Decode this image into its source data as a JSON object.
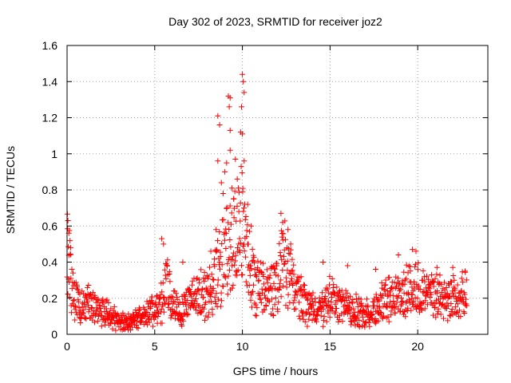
{
  "chart_data": {
    "type": "scatter",
    "title": "Day 302 of 2023, SRMTID for receiver joz2",
    "xlabel": "GPS time / hours",
    "ylabel": "SRMTID / TECUs",
    "xlim": [
      0,
      24
    ],
    "ylim": [
      0,
      1.6
    ],
    "x_ticks": [
      0,
      5,
      10,
      15,
      20
    ],
    "y_ticks": [
      0,
      0.2,
      0.4,
      0.6,
      0.8,
      1,
      1.2,
      1.4,
      1.6
    ],
    "x_tick_labels": [
      "0",
      "5",
      "10",
      "15",
      "20"
    ],
    "y_tick_labels": [
      "0",
      "0.2",
      "0.4",
      "0.6",
      "0.8",
      "1",
      "1.2",
      "1.4",
      "1.6"
    ],
    "grid": true,
    "marker": "+",
    "series": [
      {
        "name": "SRMTID",
        "color": "#ff0000",
        "trend_hours": [
          0,
          0.1,
          0.3,
          0.6,
          1,
          1.5,
          2,
          2.5,
          3,
          3.5,
          4,
          4.5,
          5,
          5.4,
          5.6,
          6,
          6.5,
          7,
          7.5,
          8,
          8.5,
          9,
          9.3,
          9.7,
          10,
          10.3,
          10.6,
          11,
          11.5,
          12,
          12.3,
          12.6,
          13,
          13.5,
          14,
          14.5,
          15,
          15.5,
          16,
          16.5,
          17,
          17.5,
          18,
          18.5,
          19,
          19.5,
          20,
          20.5,
          21,
          21.5,
          22,
          22.5,
          22.8
        ],
        "trend_tecu": [
          0.45,
          0.42,
          0.25,
          0.18,
          0.16,
          0.16,
          0.13,
          0.11,
          0.07,
          0.07,
          0.09,
          0.12,
          0.13,
          0.18,
          0.3,
          0.17,
          0.14,
          0.2,
          0.22,
          0.22,
          0.32,
          0.45,
          0.5,
          0.55,
          0.6,
          0.42,
          0.3,
          0.26,
          0.22,
          0.3,
          0.42,
          0.35,
          0.25,
          0.17,
          0.15,
          0.13,
          0.2,
          0.17,
          0.14,
          0.13,
          0.11,
          0.13,
          0.18,
          0.2,
          0.22,
          0.25,
          0.27,
          0.2,
          0.21,
          0.2,
          0.2,
          0.2,
          0.25
        ],
        "peaks": [
          {
            "x": 0.05,
            "y": 0.63
          },
          {
            "x": 0.1,
            "y": 0.56
          },
          {
            "x": 0.2,
            "y": 0.48
          },
          {
            "x": 5.4,
            "y": 0.53
          },
          {
            "x": 5.5,
            "y": 0.5
          },
          {
            "x": 6.6,
            "y": 0.4
          },
          {
            "x": 8.2,
            "y": 0.46
          },
          {
            "x": 8.5,
            "y": 0.58
          },
          {
            "x": 8.6,
            "y": 1.21
          },
          {
            "x": 8.7,
            "y": 1.16
          },
          {
            "x": 8.6,
            "y": 0.96
          },
          {
            "x": 8.8,
            "y": 0.84
          },
          {
            "x": 8.9,
            "y": 0.78
          },
          {
            "x": 9.0,
            "y": 0.9
          },
          {
            "x": 9.1,
            "y": 0.95
          },
          {
            "x": 9.2,
            "y": 1.32
          },
          {
            "x": 9.25,
            "y": 1.26
          },
          {
            "x": 9.3,
            "y": 1.31
          },
          {
            "x": 9.3,
            "y": 1.13
          },
          {
            "x": 9.3,
            "y": 1.02
          },
          {
            "x": 9.4,
            "y": 0.81
          },
          {
            "x": 9.5,
            "y": 0.75
          },
          {
            "x": 9.6,
            "y": 0.97
          },
          {
            "x": 9.7,
            "y": 0.71
          },
          {
            "x": 9.8,
            "y": 0.68
          },
          {
            "x": 9.9,
            "y": 1.12
          },
          {
            "x": 9.95,
            "y": 1.26
          },
          {
            "x": 10.0,
            "y": 1.44
          },
          {
            "x": 10.05,
            "y": 1.4
          },
          {
            "x": 10.1,
            "y": 1.34
          },
          {
            "x": 10.0,
            "y": 1.11
          },
          {
            "x": 10.1,
            "y": 0.96
          },
          {
            "x": 10.3,
            "y": 0.72
          },
          {
            "x": 10.5,
            "y": 0.6
          },
          {
            "x": 12.2,
            "y": 0.67
          },
          {
            "x": 12.3,
            "y": 0.62
          },
          {
            "x": 12.6,
            "y": 0.58
          },
          {
            "x": 14.6,
            "y": 0.4
          },
          {
            "x": 16.0,
            "y": 0.38
          },
          {
            "x": 17.6,
            "y": 0.36
          },
          {
            "x": 18.9,
            "y": 0.44
          },
          {
            "x": 19.7,
            "y": 0.47
          },
          {
            "x": 19.9,
            "y": 0.46
          },
          {
            "x": 21.1,
            "y": 0.37
          },
          {
            "x": 22.0,
            "y": 0.37
          },
          {
            "x": 22.7,
            "y": 0.35
          }
        ]
      }
    ]
  }
}
